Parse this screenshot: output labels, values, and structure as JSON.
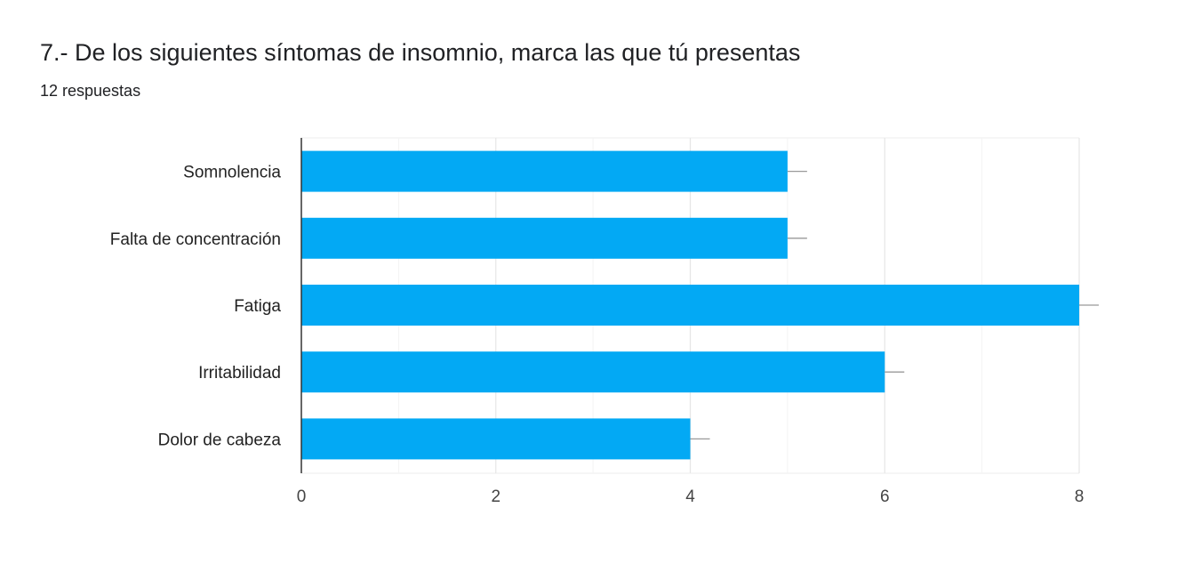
{
  "question": {
    "title": "7.- De los siguientes síntomas de insomnio, marca las que tú presentas",
    "responses_label": "12 respuestas"
  },
  "chart_data": {
    "type": "bar",
    "orientation": "horizontal",
    "categories": [
      "Somnolencia",
      "Falta de concentración",
      "Fatiga",
      "Irritabilidad",
      "Dolor de cabeza"
    ],
    "values": [
      5,
      5,
      8,
      6,
      4
    ],
    "xlim": [
      0,
      8
    ],
    "xticks": [
      0,
      2,
      4,
      6,
      8
    ],
    "grid": true,
    "bar_color": "#03a9f4"
  }
}
